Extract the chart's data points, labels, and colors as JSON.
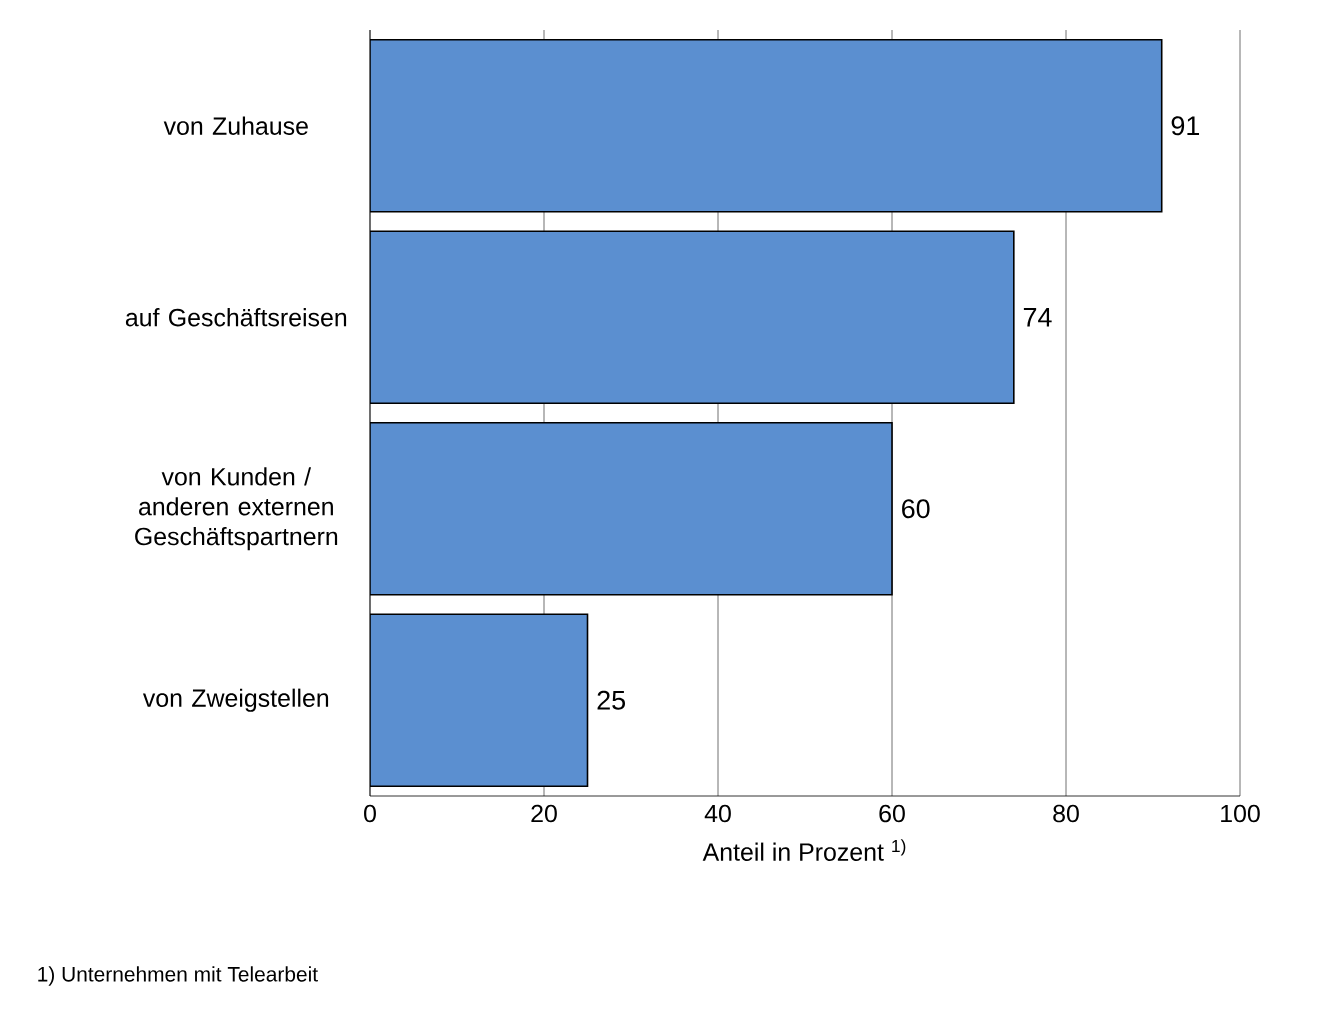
{
  "chart_data": {
    "type": "bar",
    "orientation": "horizontal",
    "categories": [
      "von Zuhause",
      "auf Geschäftsreisen",
      "von Kunden / anderen externen Geschäftspartnern",
      "von Zweigstellen"
    ],
    "values": [
      91,
      74,
      60,
      25
    ],
    "color": "#5b8fd0",
    "data_labels": true,
    "xlim": [
      0,
      100
    ],
    "xticks": [
      0,
      20,
      40,
      60,
      80,
      100
    ],
    "grid": "x",
    "xlabel": "Anteil in Prozent $^{1)}$",
    "annotations": [
      "1) Unternehmen mit Telearbeit"
    ]
  }
}
